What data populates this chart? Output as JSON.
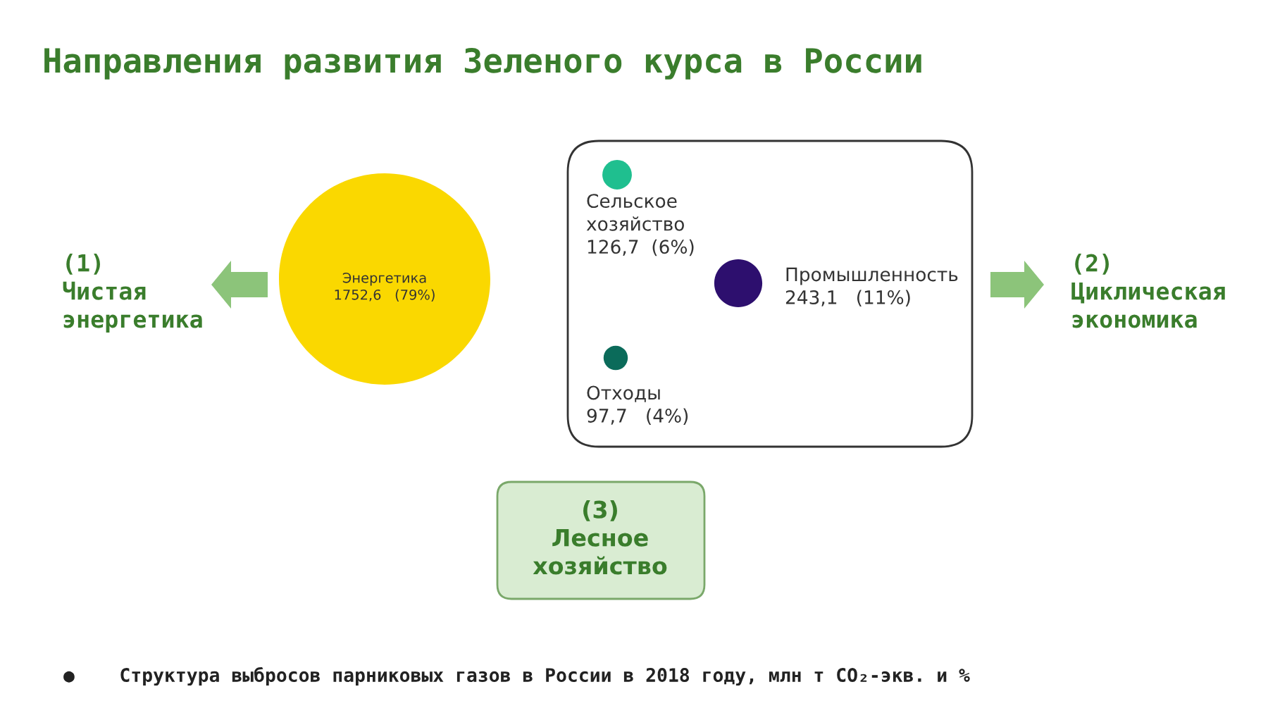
{
  "chart_data": {
    "type": "other",
    "title": "Направления развития Зеленого курса в России",
    "categories": [
      "Энергетика",
      "Промышленность",
      "Сельское хозяйство",
      "Отходы"
    ],
    "values": [
      1752.6,
      243.1,
      126.7,
      97.7
    ],
    "value_labels": [
      "1752,6   (79%)",
      "243,1   (11%)",
      "126,7  (6%)",
      "97,7   (4%)"
    ],
    "colors": [
      "#fad800",
      "#2d0f6e",
      "#1fbf8f",
      "#0b6b5a"
    ],
    "annotations": [
      "(1)\nЧистая\nэнергетика",
      "(2)\nЦиклическая\nэкономика",
      "(3)\nЛесное\nхозяйство",
      "●    Структура выбросов парниковых газов в России в 2018 году, млн т CO₂-экв. и %"
    ]
  }
}
